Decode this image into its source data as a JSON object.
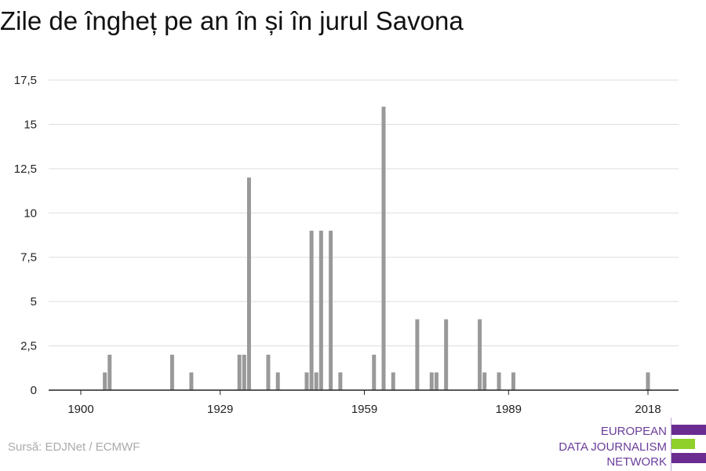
{
  "title": "Zile de îngheț pe an în și în jurul Savona",
  "source": "Sursă: EDJNet / ECMWF",
  "logo": {
    "lines": [
      "EUROPEAN",
      "DATA JOURNALISM",
      "NETWORK"
    ],
    "colors": {
      "purple": "#6a2c91",
      "green": "#8fd12a"
    }
  },
  "colors": {
    "bar": "#999999",
    "grid": "#dddddd",
    "axis": "#222222",
    "tick_text": "#222222"
  },
  "chart_data": {
    "type": "bar",
    "title": "Zile de îngheț pe an în și în jurul Savona",
    "xlabel": "",
    "ylabel": "",
    "xlim": [
      1894,
      2024
    ],
    "ylim": [
      0,
      17.5
    ],
    "y_ticks": [
      "0",
      "2,5",
      "5",
      "7,5",
      "10",
      "12,5",
      "15",
      "17,5"
    ],
    "x_ticks": [
      "1900",
      "1929",
      "1959",
      "1989",
      "2018"
    ],
    "grid": true,
    "legend": "none",
    "x": [
      1905,
      1906,
      1919,
      1923,
      1933,
      1934,
      1935,
      1939,
      1941,
      1947,
      1948,
      1949,
      1950,
      1952,
      1954,
      1961,
      1963,
      1965,
      1970,
      1973,
      1974,
      1976,
      1983,
      1984,
      1987,
      1990,
      2018
    ],
    "values": [
      1,
      2,
      2,
      1,
      2,
      2,
      12,
      2,
      1,
      1,
      9,
      1,
      9,
      9,
      1,
      2,
      16,
      1,
      4,
      1,
      1,
      4,
      4,
      1,
      1,
      1,
      1
    ]
  }
}
